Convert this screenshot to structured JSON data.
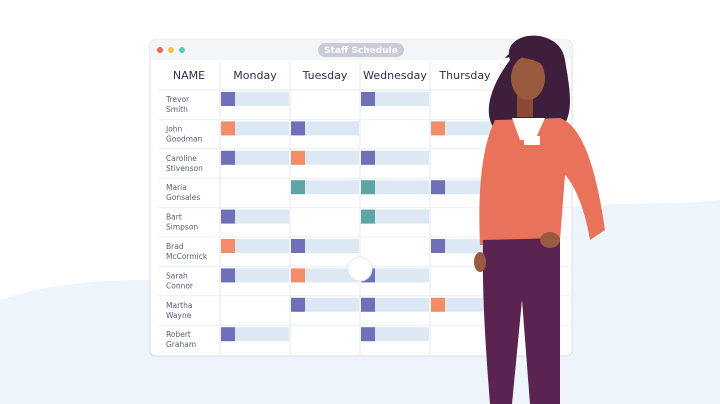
{
  "window": {
    "title": "Staff Schedule"
  },
  "table": {
    "columns": [
      "NAME",
      "Monday",
      "Tuesday",
      "Wednesday",
      "Thursday"
    ],
    "rows": [
      {
        "name": [
          "Trevor",
          "Smith"
        ],
        "shifts": [
          "#6f70b8",
          null,
          "#6f70b8",
          null
        ]
      },
      {
        "name": [
          "John",
          "Goodman"
        ],
        "shifts": [
          "#f28d68",
          "#6f70b8",
          null,
          "#f28d68"
        ]
      },
      {
        "name": [
          "Caroline",
          "Stivenson"
        ],
        "shifts": [
          "#6f70b8",
          "#f28d68",
          "#6f70b8",
          null
        ]
      },
      {
        "name": [
          "Maria",
          "Gonsales"
        ],
        "shifts": [
          null,
          "#5ea5a5",
          "#5ea5a5",
          "#6f70b8"
        ]
      },
      {
        "name": [
          "Bart",
          "Simpson"
        ],
        "shifts": [
          "#6f70b8",
          null,
          "#5ea5a5",
          null
        ]
      },
      {
        "name": [
          "Brad",
          "McCormick"
        ],
        "shifts": [
          "#f28d68",
          "#6f70b8",
          null,
          "#6f70b8"
        ]
      },
      {
        "name": [
          "Sarah",
          "Connor"
        ],
        "shifts": [
          "#6f70b8",
          "#f28d68",
          "#6f70b8",
          null
        ]
      },
      {
        "name": [
          "Martha",
          "Wayne"
        ],
        "shifts": [
          null,
          "#6f70b8",
          "#6f70b8",
          "#f28d68"
        ]
      },
      {
        "name": [
          "Robert",
          "Graham"
        ],
        "shifts": [
          "#6f70b8",
          null,
          "#6f70b8",
          null
        ]
      }
    ]
  }
}
